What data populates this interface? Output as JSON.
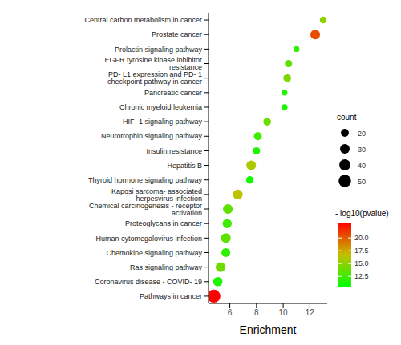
{
  "chart_data": {
    "type": "scatter",
    "x_label": "Enrichment",
    "categories": [
      "Central carbon metabolism in cancer",
      "Prostate cancer",
      "Prolactin signaling pathway",
      "EGFR tyrosine kinase inhibitor resistance",
      "PD- L1 expression and PD- 1 checkpoint pathway in cancer",
      "Pancreatic cancer",
      "Chronic myeloid leukemia",
      "HIF- 1 signaling pathway",
      "Neurotrophin signaling pathway",
      "Insulin resistance",
      "Hepatitis B",
      "Thyroid hormone signaling pathway",
      "Kaposi sarcoma- associated herpesvirus infection",
      "Chemical carcinogenesis -  receptor activation",
      "Proteoglycans in cancer",
      "Human cytomegalovirus infection",
      "Chemokine signaling pathway",
      "Ras signaling pathway",
      "Coronavirus disease -  COVID- 19",
      "Pathways in cancer"
    ],
    "values": [
      13.0,
      12.4,
      11.0,
      10.4,
      10.3,
      10.1,
      10.1,
      8.8,
      8.1,
      8.0,
      7.6,
      7.5,
      6.6,
      5.85,
      5.8,
      5.7,
      5.7,
      5.3,
      5.1,
      4.8
    ],
    "count": [
      15,
      30,
      11,
      17,
      19,
      11,
      12,
      19,
      20,
      17,
      30,
      18,
      30,
      30,
      27,
      30,
      25,
      30,
      28,
      55
    ],
    "neg_log10_pvalue": [
      15,
      20.5,
      12,
      13.5,
      14.5,
      11.5,
      11.5,
      14,
      12.5,
      11.5,
      16,
      11,
      16.5,
      13.5,
      12.5,
      13.5,
      12,
      14,
      11.5,
      23
    ],
    "xlim": [
      4.4,
      13.3
    ],
    "xticks": [
      6,
      8,
      10,
      12
    ],
    "grid": false,
    "size_legend": {
      "title": "count",
      "values": [
        20,
        30,
        40,
        50
      ]
    },
    "colorbar": {
      "title": "- log10(pvalue)",
      "range": [
        10.5,
        23
      ],
      "ticks": [
        {
          "value": 20,
          "label": "20.0"
        },
        {
          "value": 17.5,
          "label": "17.5"
        },
        {
          "value": 15,
          "label": "15.0"
        },
        {
          "value": 12.5,
          "label": "12.5"
        }
      ]
    }
  }
}
